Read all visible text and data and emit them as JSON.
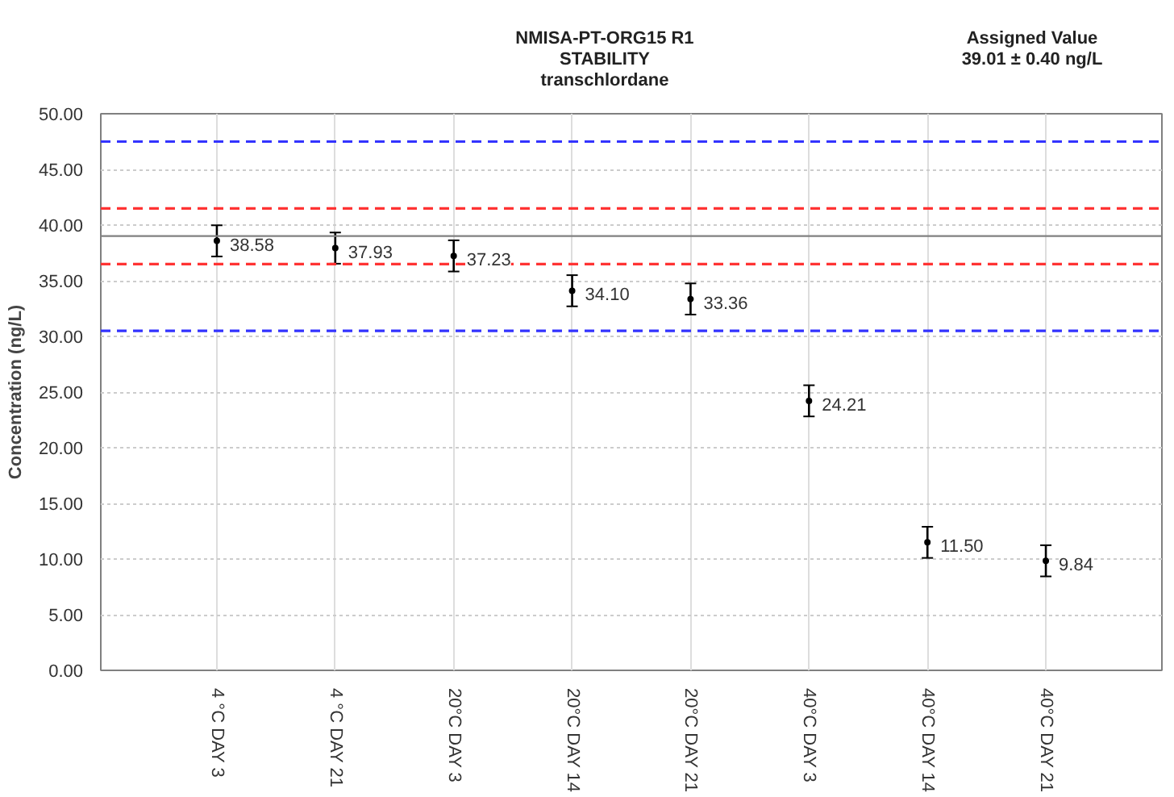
{
  "chart_data": {
    "type": "scatter",
    "title": "NMISA-PT-ORG15 R1\nSTABILITY\ntranschlordane",
    "annotations": [
      "Assigned Value\n39.01 ± 0.40 ng/L"
    ],
    "ylabel": "Concentration (ng/L)",
    "categories": [
      "4 °C DAY 3",
      "4 °C DAY 21",
      "20°C DAY 3",
      "20°C DAY 14",
      "20°C DAY 21",
      "40°C DAY 3",
      "40°C DAY 14",
      "40°C DAY 21"
    ],
    "series": [
      {
        "color": "#000000",
        "values": [
          38.58,
          37.93,
          37.23,
          34.1,
          33.36,
          24.21,
          11.5,
          9.84
        ],
        "errors": [
          1.4,
          1.4,
          1.4,
          1.4,
          1.4,
          1.4,
          1.4,
          1.4
        ],
        "value_labels": [
          "38.58",
          "37.93",
          "37.23",
          "34.10",
          "33.36",
          "24.21",
          "11.50",
          "9.84"
        ]
      }
    ],
    "ylim": [
      0,
      50
    ],
    "yticks": [
      {
        "value": 0,
        "label": "0.00"
      },
      {
        "value": 5,
        "label": "5.00"
      },
      {
        "value": 10,
        "label": "10.00"
      },
      {
        "value": 15,
        "label": "15.00"
      },
      {
        "value": 20,
        "label": "20.00"
      },
      {
        "value": 25,
        "label": "25.00"
      },
      {
        "value": 30,
        "label": "30.00"
      },
      {
        "value": 35,
        "label": "35.00"
      },
      {
        "value": 40,
        "label": "40.00"
      },
      {
        "value": 45,
        "label": "45.00"
      },
      {
        "value": 50,
        "label": "50.00"
      }
    ],
    "ref_lines": [
      {
        "axis": "y",
        "value": 39.01,
        "color": "#808080",
        "line_style": "solid"
      },
      {
        "axis": "y",
        "value": 41.5,
        "color": "#ff3333",
        "line_style": "dashed"
      },
      {
        "axis": "y",
        "value": 36.5,
        "color": "#ff3333",
        "line_style": "dashed"
      },
      {
        "axis": "y",
        "value": 47.5,
        "color": "#3333ff",
        "line_style": "dashed"
      },
      {
        "axis": "y",
        "value": 30.5,
        "color": "#3333ff",
        "line_style": "dashed"
      }
    ],
    "grid": true,
    "marker": "circle"
  }
}
